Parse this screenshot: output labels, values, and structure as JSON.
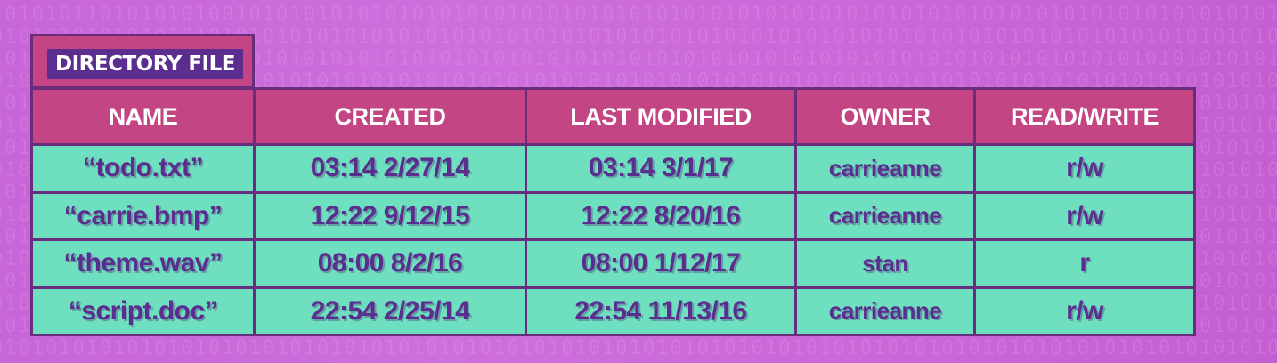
{
  "background": {
    "binary_rows": [
      "1010101101010101001010101010101010101010101010101010101010101010101010101010101010101010101010101010101010101010",
      "0101010101010101010101010101010101010101010101010101010101010101010101010101010101010101010101010101010101010101",
      "1010101010101010101010101010101010101010101010101010101010101010101010101010101010101010101010101010101010101010",
      "0101010101010101010101010101010101010101010101010101010101010101010101010101010101010101010101010101010101010101",
      "1010101010101010101010101010101010101010101010101010101010101010101010101010101010101010101010101010101010101010",
      "0101010101010101010101010101010101010101010101010101010101010101010101010101010101010101010101010101010101010101",
      "1010101010101010101010101010101010101010101010101010101010101010101010101010101010101010101010101010101010101010",
      "0101010101010101010101010101010101010101010101010101010101010101010101010101010101010101010101010101010101010101",
      "1010101010101010101010101010101010101010101010101010101010101010101010101010101010101010101010101010101010101010",
      "0101010101010101010101010101010101010101010101010101010101010101010101010101010101010101010101010101010101010101",
      "1010101010101010101010101010101010101010101010101010101010101010101010101010101010101010101010101010101010101010",
      "0101010101010101010101010101010101010101010101010101010101010101010101010101010101010101010101010101010101010101",
      "1010101010101010101010101010101010101010101010101010101010101010101010101010101010101010101010101010101010101010",
      "0101010101010101010101010101010101010101010101010101010101010101010101010101010101010101010101010101010101010101",
      "1010101010101010101010101010101010101010101010101010101010101010101010101010101010101010101010101010101010101010",
      "0101010101010101010101010101010101010101010101010101010101010101010101010101010101010101010101010101010101010101"
    ]
  },
  "directory": {
    "title": "DIRECTORY FILE",
    "columns": [
      "NAME",
      "CREATED",
      "LAST MODIFIED",
      "OWNER",
      "READ/WRITE"
    ],
    "rows": [
      [
        "“todo.txt”",
        "03:14 2/27/14",
        "03:14 3/1/17",
        "carrieanne",
        "r/w"
      ],
      [
        "“carrie.bmp”",
        "12:22 9/12/15",
        "12:22 8/20/16",
        "carrieanne",
        "r/w"
      ],
      [
        "“theme.wav”",
        "08:00 8/2/16",
        "08:00 1/12/17",
        "stan",
        "r"
      ],
      [
        "“script.doc”",
        "22:54 2/25/14",
        "22:54 11/13/16",
        "carrieanne",
        "r/w"
      ]
    ]
  },
  "colors": {
    "background": "#cc6cda",
    "header_fill": "#c34583",
    "cell_fill": "#6ee0bf",
    "border": "#6a2d7d",
    "title_fill": "#5b2d8e",
    "cell_text": "#5b2d8e",
    "header_text": "#ffffff"
  }
}
